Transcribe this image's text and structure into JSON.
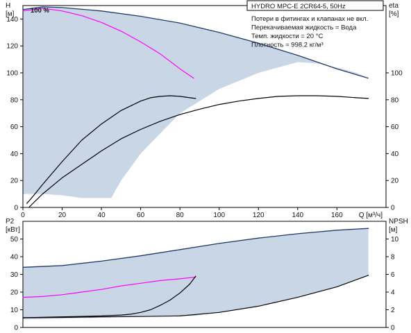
{
  "chart_data": [
    {
      "type": "line",
      "panel": "top",
      "title": "HYDRO MPC-E 2CR64-5, 50Hz",
      "notes": [
        "Потери в фитингах и клапанах не вкл.",
        "Перекачиваемая жидкость = Вода",
        "Темп. жидкости = 20 °C",
        "Плотность = 998.2 кг/м³"
      ],
      "annotation": "100 %",
      "y_left_label": {
        "line1": "H",
        "line2": "[м]"
      },
      "y_right_label": {
        "line1": "eta",
        "line2": "[%]"
      },
      "x_label": "Q [м³/ч]",
      "xlim": [
        0,
        185
      ],
      "ylim": [
        0,
        150
      ],
      "xticks": [
        0,
        20,
        40,
        60,
        80,
        100,
        120,
        140,
        160
      ],
      "yticks_left": [
        0,
        20,
        40,
        60,
        80,
        100,
        120,
        140
      ],
      "yticks_right": [
        0,
        20,
        40,
        60,
        80,
        100
      ],
      "envelope": {
        "x": [
          0,
          10,
          20,
          40,
          60,
          80,
          100,
          120,
          140,
          160,
          176,
          176,
          170,
          160,
          150,
          140,
          120,
          100,
          80,
          70,
          60,
          50,
          45,
          40,
          30,
          20,
          10,
          0
        ],
        "y": [
          147,
          149,
          148.5,
          146,
          142,
          137,
          130,
          122,
          113,
          103,
          96,
          96,
          100,
          104,
          107,
          108,
          100,
          88,
          70,
          55,
          40,
          20,
          7,
          7,
          7,
          9,
          10,
          10
        ]
      },
      "series": [
        {
          "color": "#ff00ff",
          "x": [
            0,
            10,
            20,
            30,
            40,
            50,
            60,
            70,
            80,
            87
          ],
          "y": [
            146,
            148,
            146,
            142.5,
            137.5,
            131,
            123,
            114,
            103,
            96
          ]
        },
        {
          "color": "#000000",
          "x": [
            2,
            5,
            10,
            20,
            30,
            40,
            50,
            60,
            65,
            70,
            75,
            80,
            85,
            88
          ],
          "y": [
            3,
            8,
            17,
            34,
            50,
            62,
            72,
            79,
            81.5,
            82.5,
            83,
            82.5,
            81.5,
            81
          ]
        },
        {
          "color": "#000000",
          "x": [
            3,
            10,
            20,
            30,
            40,
            50,
            60,
            70,
            80,
            90,
            100,
            110,
            120,
            130,
            140,
            150,
            160,
            170,
            176
          ],
          "y": [
            0,
            10,
            22,
            32,
            42,
            51,
            58,
            64,
            69,
            73,
            76.5,
            79,
            81,
            82.5,
            83,
            83,
            82.5,
            81.5,
            81
          ]
        }
      ]
    },
    {
      "type": "line",
      "panel": "bottom",
      "y_left_label": {
        "line1": "P2",
        "line2": "[кВт]"
      },
      "y_right_label": {
        "line1": "NPSH",
        "line2": "[м]"
      },
      "xlim": [
        0,
        185
      ],
      "ylim": [
        0,
        60
      ],
      "yticks_left": [
        0,
        10,
        20,
        30,
        40,
        50
      ],
      "yticks_right": [
        0,
        2,
        4,
        6,
        8,
        10
      ],
      "envelope": {
        "x": [
          0,
          20,
          40,
          60,
          80,
          100,
          120,
          140,
          160,
          176,
          176,
          160,
          140,
          120,
          100,
          90,
          88,
          80,
          60,
          40,
          20,
          0
        ],
        "y": [
          34,
          35,
          37.5,
          40.5,
          44,
          47.5,
          50.5,
          53,
          55,
          56,
          29.5,
          23,
          17,
          12,
          8.5,
          7,
          6.5,
          6.5,
          6,
          5.5,
          5,
          4.5
        ]
      },
      "series": [
        {
          "color": "#1f3a68",
          "x": [
            0,
            20,
            40,
            60,
            80,
            100,
            120,
            140,
            160,
            176
          ],
          "y": [
            34,
            35,
            37.5,
            40.5,
            44,
            47.5,
            50.5,
            53,
            55,
            56
          ]
        },
        {
          "color": "#ff00ff",
          "x": [
            0,
            10,
            20,
            30,
            40,
            50,
            60,
            70,
            80,
            88
          ],
          "y": [
            17,
            17.5,
            18.5,
            20,
            21.5,
            23.5,
            25,
            26.5,
            27.5,
            28.5
          ]
        },
        {
          "color": "#000000",
          "x": [
            0,
            20,
            40,
            50,
            55,
            60,
            65,
            70,
            75,
            80,
            85,
            88
          ],
          "y": [
            5.5,
            6,
            6.5,
            7,
            7.5,
            8.5,
            10,
            12.5,
            15.5,
            19.5,
            24.5,
            29
          ]
        },
        {
          "color": "#000000",
          "x": [
            0,
            20,
            40,
            60,
            80,
            100,
            120,
            140,
            160,
            176
          ],
          "y": [
            5.5,
            5.7,
            6,
            6.2,
            6.5,
            8.5,
            12,
            17,
            23,
            29.5
          ]
        }
      ]
    }
  ]
}
